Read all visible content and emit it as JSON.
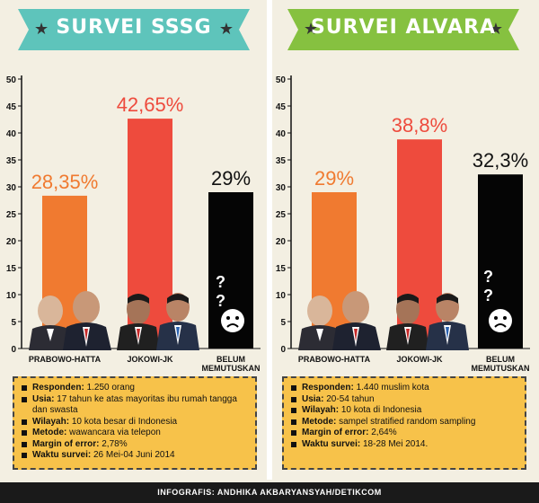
{
  "colors": {
    "orange": "#f07a30",
    "red": "#ee4b3d",
    "black": "#050505",
    "left_banner": "#5ec4bb",
    "right_banner": "#86c140",
    "info_bg": "#f7c24a"
  },
  "panels": [
    {
      "title": "SURVEI SSSG",
      "info": [
        {
          "label": "Responden:",
          "value": "1.250 orang"
        },
        {
          "label": "Usia:",
          "value": "17 tahun ke atas mayoritas ibu rumah tangga dan swasta"
        },
        {
          "label": "Wilayah:",
          "value": "10 kota besar di Indonesia"
        },
        {
          "label": "Metode:",
          "value": "wawancara via telepon"
        },
        {
          "label": "Margin of error:",
          "value": "2,78%"
        },
        {
          "label": "Waktu survei:",
          "value": "26 Mei-04 Juni 2014"
        }
      ]
    },
    {
      "title": "SURVEI ALVARA",
      "info": [
        {
          "label": "Responden:",
          "value": "1.440 muslim kota"
        },
        {
          "label": "Usia:",
          "value": "20-54 tahun"
        },
        {
          "label": "Wilayah:",
          "value": "10 kota di Indonesia"
        },
        {
          "label": "Metode:",
          "value": "sampel stratified random sampling"
        },
        {
          "label": "Margin of error:",
          "value": "2,64%"
        },
        {
          "label": "Waktu survei:",
          "value": "18-28 Mei 2014."
        }
      ]
    }
  ],
  "chart_data": [
    {
      "type": "bar",
      "title": "SURVEI SSSG",
      "categories": [
        "PRABOWO-HATTA",
        "JOKOWI-JK",
        "BELUM MEMUTUSKAN"
      ],
      "values": [
        28.35,
        42.65,
        29
      ],
      "value_labels": [
        "28,35%",
        "42,65%",
        "29%"
      ],
      "ylim": [
        0,
        50
      ],
      "yticks": [
        0,
        5,
        10,
        15,
        20,
        25,
        30,
        35,
        40,
        45,
        50
      ],
      "grid": false
    },
    {
      "type": "bar",
      "title": "SURVEI ALVARA",
      "categories": [
        "PRABOWO-HATTA",
        "JOKOWI-JK",
        "BELUM MEMUTUSKAN"
      ],
      "values": [
        29,
        38.8,
        32.3
      ],
      "value_labels": [
        "29%",
        "38,8%",
        "32,3%"
      ],
      "ylim": [
        0,
        50
      ],
      "yticks": [
        0,
        5,
        10,
        15,
        20,
        25,
        30,
        35,
        40,
        45,
        50
      ],
      "grid": false
    }
  ],
  "question_marks": "? ?",
  "footer": "INFOGRAFIS: ANDHIKA AKBARYANSYAH/DETIKCOM"
}
